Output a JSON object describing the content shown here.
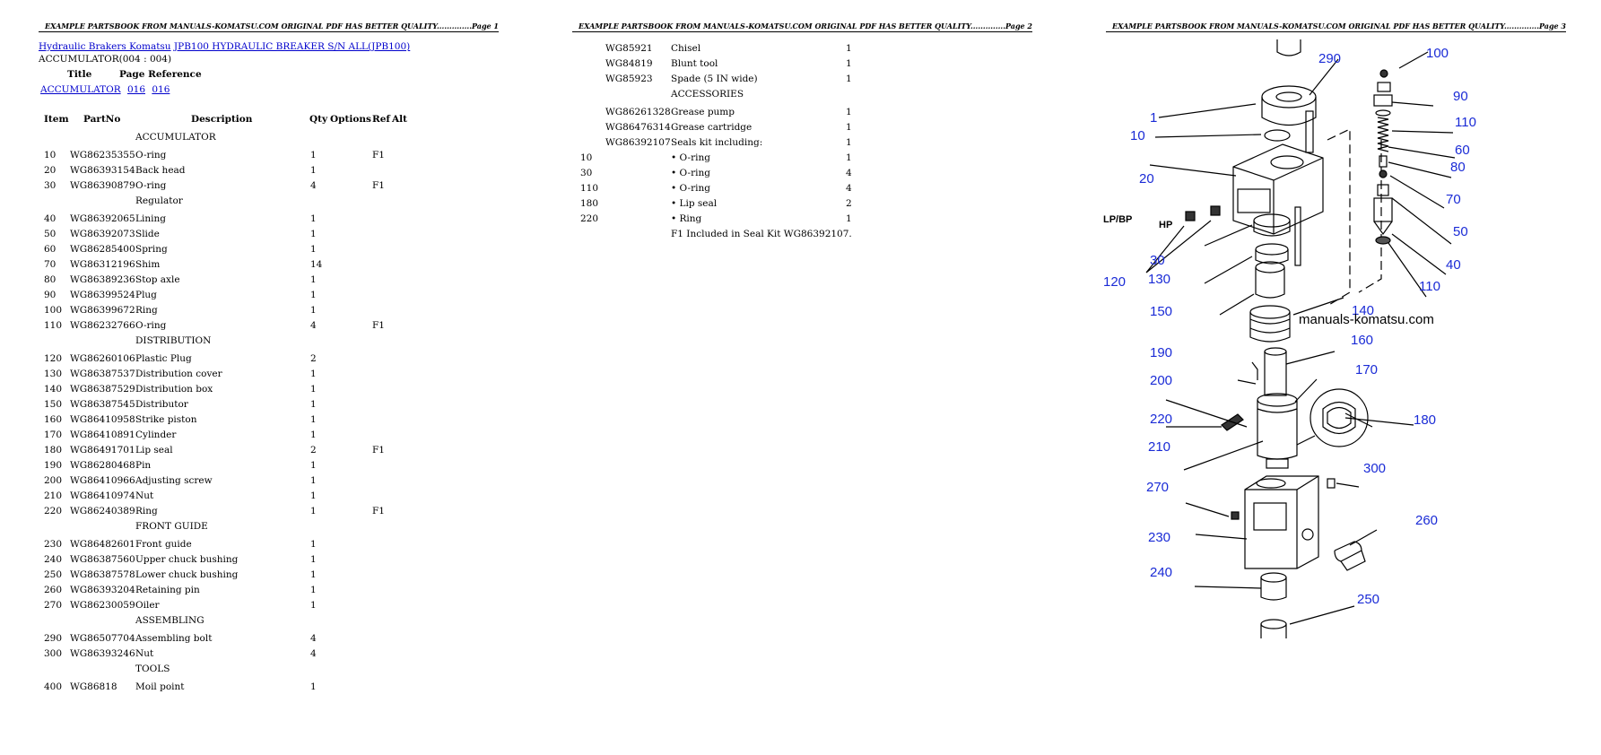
{
  "header_text": "EXAMPLE PARTSBOOK FROM MANUALS-KOMATSU.COM ORIGINAL PDF HAS BETTER QUALITY",
  "pages": [
    {
      "suffix": "..............Page 1"
    },
    {
      "suffix": "..............Page 2"
    },
    {
      "suffix": "..............Page 3"
    }
  ],
  "breadcrumb": {
    "brand": "Hydraulic Brakers Komatsu",
    "model": "JPB100 HYDRAULIC BREAKER S/N ALL(JPB100)"
  },
  "subtitle": "ACCUMULATOR(004 : 004)",
  "title_ref": {
    "title_label": "Title",
    "ref_label": "Page Reference",
    "title_link": "ACCUMULATOR",
    "ref1": "016",
    "ref2": "016"
  },
  "columns": {
    "item": "Item",
    "partno": "PartNo",
    "desc": "Description",
    "qty": "Qty",
    "options": "Options",
    "ref": "Ref",
    "alt": "Alt"
  },
  "page1_rows": [
    {
      "section": "ACCUMULATOR"
    },
    {
      "item": "10",
      "partno": "WG86235355",
      "desc": "O-ring",
      "qty": "1",
      "ref": "F1"
    },
    {
      "item": "20",
      "partno": "WG86393154",
      "desc": "Back head",
      "qty": "1",
      "ref": ""
    },
    {
      "item": "30",
      "partno": "WG86390879",
      "desc": "O-ring",
      "qty": "4",
      "ref": "F1"
    },
    {
      "section": "Regulator"
    },
    {
      "item": "40",
      "partno": "WG86392065",
      "desc": "Lining",
      "qty": "1",
      "ref": ""
    },
    {
      "item": "50",
      "partno": "WG86392073",
      "desc": "Slide",
      "qty": "1",
      "ref": ""
    },
    {
      "item": "60",
      "partno": "WG86285400",
      "desc": "Spring",
      "qty": "1",
      "ref": ""
    },
    {
      "item": "70",
      "partno": "WG86312196",
      "desc": "Shim",
      "qty": "14",
      "ref": ""
    },
    {
      "item": "80",
      "partno": "WG86389236",
      "desc": "Stop axle",
      "qty": "1",
      "ref": ""
    },
    {
      "item": "90",
      "partno": "WG86399524",
      "desc": "Plug",
      "qty": "1",
      "ref": ""
    },
    {
      "item": "100",
      "partno": "WG86399672",
      "desc": "Ring",
      "qty": "1",
      "ref": ""
    },
    {
      "item": "110",
      "partno": "WG86232766",
      "desc": "O-ring",
      "qty": "4",
      "ref": "F1"
    },
    {
      "section": "DISTRIBUTION"
    },
    {
      "item": "120",
      "partno": "WG86260106",
      "desc": "Plastic Plug",
      "qty": "2",
      "ref": ""
    },
    {
      "item": "130",
      "partno": "WG86387537",
      "desc": "Distribution cover",
      "qty": "1",
      "ref": ""
    },
    {
      "item": "140",
      "partno": "WG86387529",
      "desc": "Distribution box",
      "qty": "1",
      "ref": ""
    },
    {
      "item": "150",
      "partno": "WG86387545",
      "desc": "Distributor",
      "qty": "1",
      "ref": ""
    },
    {
      "item": "160",
      "partno": "WG86410958",
      "desc": "Strike piston",
      "qty": "1",
      "ref": ""
    },
    {
      "item": "170",
      "partno": "WG86410891",
      "desc": "Cylinder",
      "qty": "1",
      "ref": ""
    },
    {
      "item": "180",
      "partno": "WG86491701",
      "desc": "Lip seal",
      "qty": "2",
      "ref": "F1"
    },
    {
      "item": "190",
      "partno": "WG86280468",
      "desc": "Pin",
      "qty": "1",
      "ref": ""
    },
    {
      "item": "200",
      "partno": "WG86410966",
      "desc": "Adjusting screw",
      "qty": "1",
      "ref": ""
    },
    {
      "item": "210",
      "partno": "WG86410974",
      "desc": "Nut",
      "qty": "1",
      "ref": ""
    },
    {
      "item": "220",
      "partno": "WG86240389",
      "desc": "Ring",
      "qty": "1",
      "ref": "F1"
    },
    {
      "section": "FRONT GUIDE"
    },
    {
      "item": "230",
      "partno": "WG86482601",
      "desc": "Front guide",
      "qty": "1",
      "ref": ""
    },
    {
      "item": "240",
      "partno": "WG86387560",
      "desc": "Upper chuck bushing",
      "qty": "1",
      "ref": ""
    },
    {
      "item": "250",
      "partno": "WG86387578",
      "desc": "Lower chuck bushing",
      "qty": "1",
      "ref": ""
    },
    {
      "item": "260",
      "partno": "WG86393204",
      "desc": "Retaining pin",
      "qty": "1",
      "ref": ""
    },
    {
      "item": "270",
      "partno": "WG86230059",
      "desc": "Oiler",
      "qty": "1",
      "ref": ""
    },
    {
      "section": "ASSEMBLING"
    },
    {
      "item": "290",
      "partno": "WG86507704",
      "desc": "Assembling bolt",
      "qty": "4",
      "ref": ""
    },
    {
      "item": "300",
      "partno": "WG86393246",
      "desc": "Nut",
      "qty": "4",
      "ref": ""
    },
    {
      "section": "TOOLS"
    },
    {
      "item": "400",
      "partno": "WG86818",
      "desc": "Moil point",
      "qty": "1",
      "ref": ""
    }
  ],
  "page2_rows": [
    {
      "item": "",
      "partno": "WG85921",
      "desc": "Chisel",
      "qty": "1"
    },
    {
      "item": "",
      "partno": "WG84819",
      "desc": "Blunt tool",
      "qty": "1"
    },
    {
      "item": "",
      "partno": "WG85923",
      "desc": "Spade (5 IN wide)",
      "qty": "1"
    },
    {
      "section": "ACCESSORIES"
    },
    {
      "item": "",
      "partno": "WG86261328",
      "desc": "Grease pump",
      "qty": "1"
    },
    {
      "item": "",
      "partno": "WG86476314",
      "desc": "Grease cartridge",
      "qty": "1"
    },
    {
      "item": "",
      "partno": "WG86392107",
      "desc": "Seals kit including:",
      "qty": "1"
    },
    {
      "item": "10",
      "partno": "",
      "desc": "• O-ring",
      "qty": "1"
    },
    {
      "item": "30",
      "partno": "",
      "desc": "• O-ring",
      "qty": "4"
    },
    {
      "item": "110",
      "partno": "",
      "desc": "• O-ring",
      "qty": "4"
    },
    {
      "item": "180",
      "partno": "",
      "desc": "• Lip seal",
      "qty": "2"
    },
    {
      "item": "220",
      "partno": "",
      "desc": "• Ring",
      "qty": "1"
    },
    {
      "note": "F1 Included in Seal Kit WG86392107."
    }
  ],
  "diagram": {
    "watermark": "manuals-komatsu.com",
    "labels": [
      "1",
      "290",
      "100",
      "90",
      "110",
      "10",
      "60",
      "80",
      "20",
      "70",
      "50",
      "40",
      "110",
      "LP/BP",
      "HP",
      "30",
      "120",
      "130",
      "150",
      "140",
      "160",
      "190",
      "170",
      "200",
      "220",
      "180",
      "210",
      "300",
      "270",
      "260",
      "230",
      "240",
      "250"
    ],
    "label_color": "#1a2bd6"
  }
}
